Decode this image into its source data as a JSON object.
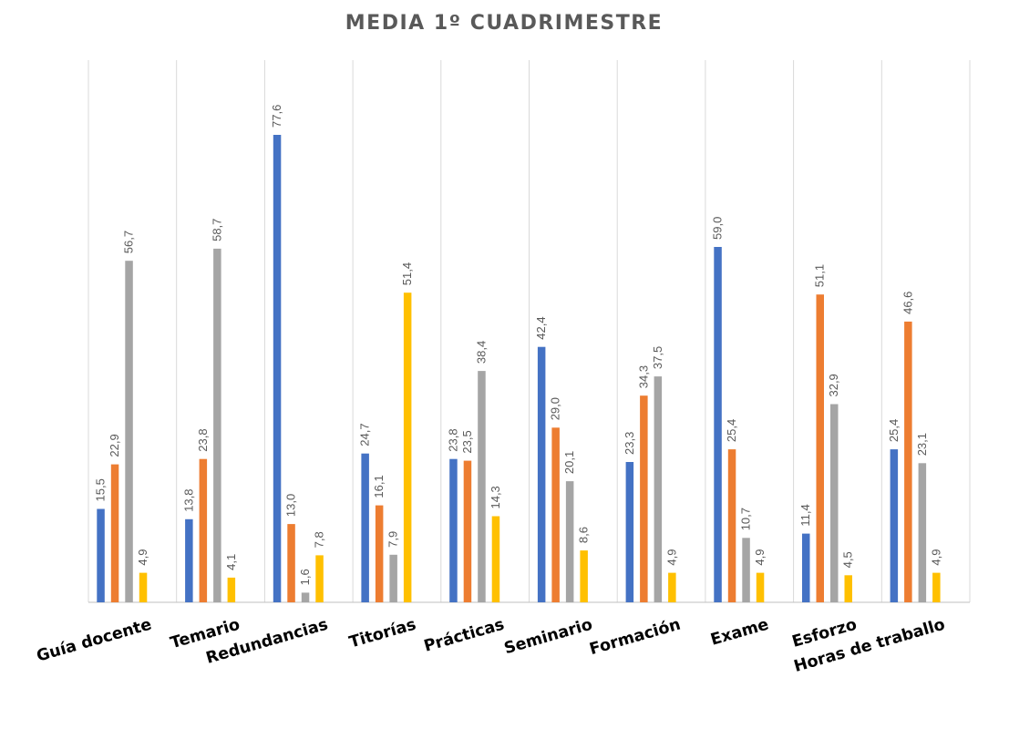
{
  "chart_data": {
    "type": "bar",
    "title": "MEDIA 1º CUADRIMESTRE",
    "xlabel": "",
    "ylabel": "",
    "ylim": [
      0,
      77.6
    ],
    "categories": [
      "Guía docente",
      "Temario",
      "Redundancias",
      "Titorías",
      "Prácticas",
      "Seminario",
      "Formación",
      "Exame",
      "Esforzo",
      "Horas de traballo"
    ],
    "series": [
      {
        "color": "#4472c4",
        "values": [
          15.5,
          13.8,
          77.6,
          24.7,
          23.8,
          42.4,
          23.3,
          59.0,
          11.4,
          25.4
        ]
      },
      {
        "color": "#ed7d31",
        "values": [
          22.9,
          23.8,
          13.0,
          16.1,
          23.5,
          29.0,
          34.3,
          25.4,
          51.1,
          46.6
        ]
      },
      {
        "color": "#a5a5a5",
        "values": [
          56.7,
          58.7,
          1.6,
          7.9,
          38.4,
          20.1,
          37.5,
          10.7,
          32.9,
          23.1
        ]
      },
      {
        "color": "#ffc000",
        "values": [
          4.9,
          4.1,
          7.8,
          51.4,
          14.3,
          8.6,
          4.9,
          4.9,
          4.5,
          4.9
        ]
      }
    ],
    "data_labels": [
      [
        "15,5",
        "13,8",
        "77,6",
        "24,7",
        "23,8",
        "42,4",
        "23,3",
        "59,0",
        "11,4",
        "25,4"
      ],
      [
        "22,9",
        "23,8",
        "13,0",
        "16,1",
        "23,5",
        "29,0",
        "34,3",
        "25,4",
        "51,1",
        "46,6"
      ],
      [
        "56,7",
        "58,7",
        "1,6",
        "7,9",
        "38,4",
        "20,1",
        "37,5",
        "10,7",
        "32,9",
        "23,1"
      ],
      [
        "4,9",
        "4,1",
        "7,8",
        "51,4",
        "14,3",
        "8,6",
        "4,9",
        "4,9",
        "4,5",
        "4,9"
      ]
    ],
    "gridlines": "vertical",
    "legend": "none"
  }
}
